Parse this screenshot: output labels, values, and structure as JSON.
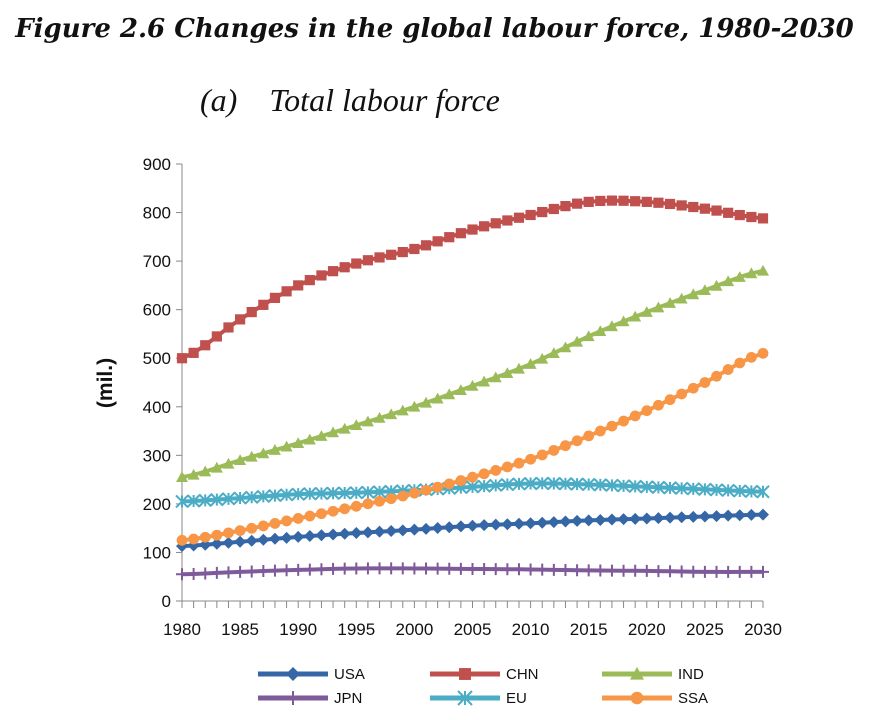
{
  "figure_title": "Figure 2.6 Changes in the global labour force, 1980-2030",
  "panel_label": "(a)",
  "panel_title": "Total labour force",
  "chart_data": {
    "type": "line",
    "title": "Total labour force",
    "xlabel": "",
    "ylabel": "(mil.)",
    "xlim": [
      1980,
      2030
    ],
    "ylim": [
      0,
      900
    ],
    "yticks": [
      0,
      100,
      200,
      300,
      400,
      500,
      600,
      700,
      800,
      900
    ],
    "xticks": [
      1980,
      1985,
      1990,
      1995,
      2000,
      2005,
      2010,
      2015,
      2020,
      2025,
      2030
    ],
    "grid": false,
    "legend_position": "bottom",
    "x_anchor_years": [
      1980,
      1985,
      1990,
      1995,
      2000,
      2005,
      2010,
      2015,
      2020,
      2025,
      2030
    ],
    "series": [
      {
        "name": "USA",
        "color": "#3567a6",
        "marker": "diamond",
        "values": [
          113,
          122,
          132,
          140,
          147,
          155,
          160,
          166,
          170,
          174,
          178
        ]
      },
      {
        "name": "CHN",
        "color": "#c0504d",
        "marker": "square",
        "values": [
          500,
          580,
          650,
          695,
          725,
          765,
          795,
          822,
          822,
          808,
          788
        ]
      },
      {
        "name": "IND",
        "color": "#9bbb59",
        "marker": "triangle",
        "values": [
          255,
          290,
          325,
          362,
          400,
          443,
          488,
          545,
          595,
          640,
          680
        ]
      },
      {
        "name": "JPN",
        "color": "#7f5a9a",
        "marker": "plus",
        "values": [
          55,
          60,
          64,
          67,
          67,
          66,
          65,
          63,
          62,
          60,
          60
        ]
      },
      {
        "name": "EU",
        "color": "#4bacc6",
        "marker": "star",
        "values": [
          205,
          212,
          220,
          223,
          228,
          235,
          242,
          240,
          235,
          230,
          225
        ]
      },
      {
        "name": "SSA",
        "color": "#f79646",
        "marker": "circle",
        "values": [
          125,
          145,
          170,
          195,
          222,
          255,
          292,
          340,
          392,
          450,
          510
        ]
      }
    ]
  }
}
